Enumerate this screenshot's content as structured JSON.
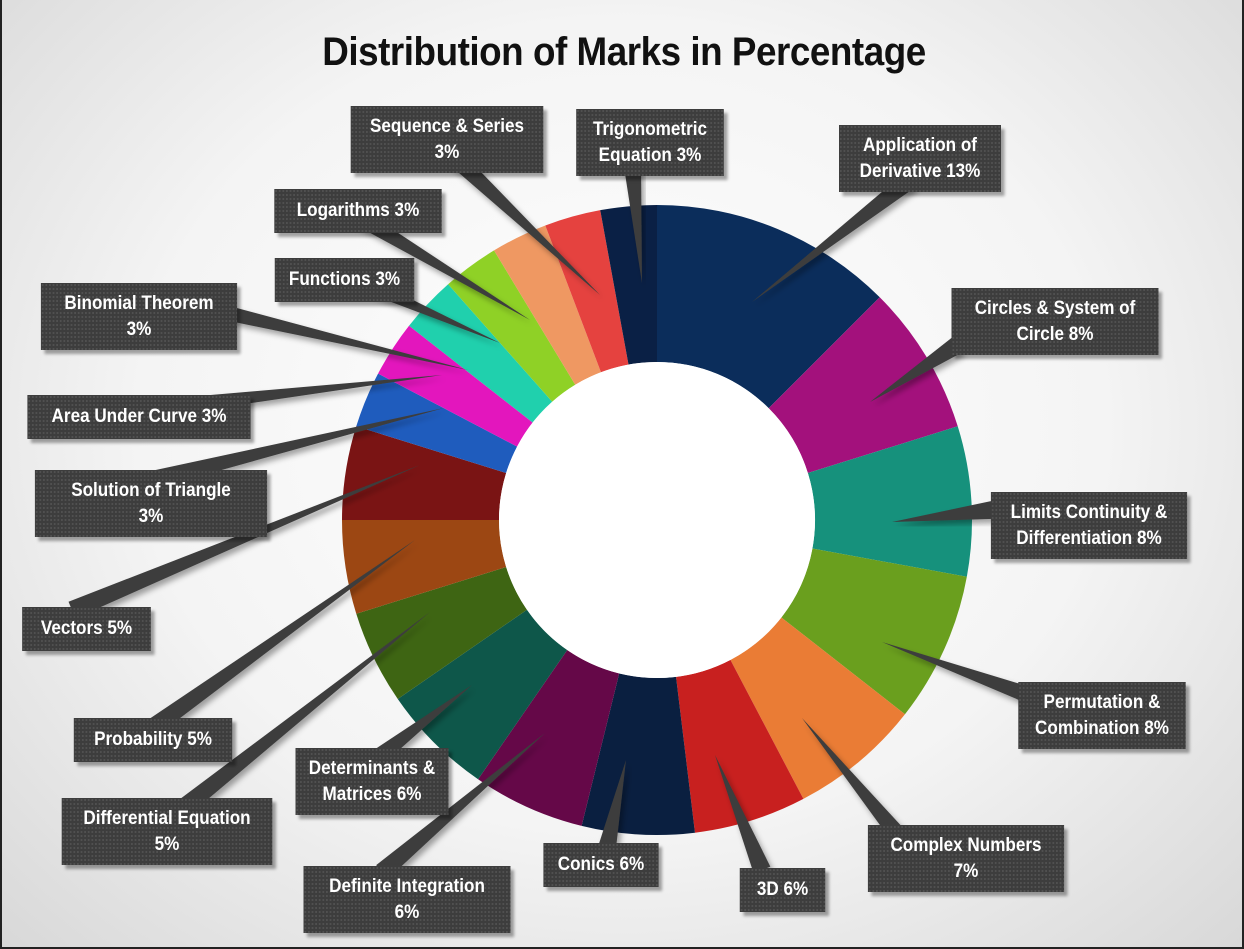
{
  "chart_data": {
    "type": "pie",
    "title": "Distribution of Marks in Percentage",
    "series": [
      {
        "name": "",
        "values": []
      }
    ],
    "slices": [
      {
        "label": "Application of Derivative 13%",
        "value": 13,
        "color": "#0b2d5b"
      },
      {
        "label": "Circles & System of Circle 8%",
        "value": 8,
        "color": "#a3117c"
      },
      {
        "label": "Limits Continuity & Differentiation 8%",
        "value": 8,
        "color": "#16917c"
      },
      {
        "label": "Permutation & Combination 8%",
        "value": 8,
        "color": "#6a9f1e"
      },
      {
        "label": "Complex Numbers 7%",
        "value": 7,
        "color": "#ea7c35"
      },
      {
        "label": "3D 6%",
        "value": 6,
        "color": "#c8201f"
      },
      {
        "label": "Conics 6%",
        "value": 6,
        "color": "#0a1f40"
      },
      {
        "label": "Definite Integration 6%",
        "value": 6,
        "color": "#650848"
      },
      {
        "label": "Determinants & Matrices 6%",
        "value": 6,
        "color": "#0e574a"
      },
      {
        "label": "Differential Equation 5%",
        "value": 5,
        "color": "#3e6513"
      },
      {
        "label": "Probability 5%",
        "value": 5,
        "color": "#9c4713"
      },
      {
        "label": "Vectors 5%",
        "value": 5,
        "color": "#7a1414"
      },
      {
        "label": "Solution of Triangle 3%",
        "value": 3,
        "color": "#1f5cbd"
      },
      {
        "label": "Area Under Curve 3%",
        "value": 3,
        "color": "#e316bd"
      },
      {
        "label": "Binomial Theorem 3%",
        "value": 3,
        "color": "#20d0ad"
      },
      {
        "label": "Functions 3%",
        "value": 3,
        "color": "#8fd126"
      },
      {
        "label": "Logarithms 3%",
        "value": 3,
        "color": "#ef9862"
      },
      {
        "label": "Sequence & Series 3%",
        "value": 3,
        "color": "#e5423f"
      },
      {
        "label": "Trigonometric Equation 3%",
        "value": 3,
        "color": "#0a2045"
      }
    ],
    "legend": "none",
    "labels": "callouts"
  },
  "callout_text": [
    "Application of\nDerivative 13%",
    "Circles & System of\nCircle 8%",
    "Limits Continuity &\nDifferentiation 8%",
    "Permutation &\nCombination 8%",
    "Complex Numbers\n7%",
    "3D 6%",
    "Conics 6%",
    "Definite Integration\n6%",
    "Determinants &\nMatrices 6%",
    "Differential Equation\n5%",
    "Probability 5%",
    "Vectors 5%",
    "Solution of Triangle\n3%",
    "Area Under Curve 3%",
    "Binomial Theorem\n3%",
    "Functions 3%",
    "Logarithms 3%",
    "Sequence & Series\n3%",
    "Trigonometric\nEquation 3%"
  ]
}
